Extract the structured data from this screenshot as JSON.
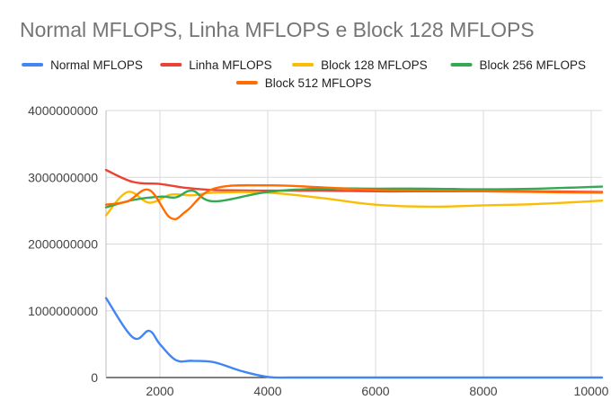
{
  "chart_data": {
    "type": "line",
    "title": "Normal MFLOPS, Linha MFLOPS e Block 128 MFLOPS",
    "xlabel": "",
    "ylabel": "",
    "xlim": [
      1000,
      10200
    ],
    "ylim": [
      0,
      4000000000
    ],
    "x_ticks": [
      2000,
      4000,
      6000,
      8000,
      10000
    ],
    "x_tick_labels": [
      "2000",
      "4000",
      "6000",
      "8000",
      "10000"
    ],
    "y_ticks": [
      0,
      1000000000,
      2000000000,
      3000000000,
      4000000000
    ],
    "y_tick_labels": [
      "0",
      "1000000000",
      "2000000000",
      "3000000000",
      "4000000000"
    ],
    "grid": true,
    "legend_position": "top",
    "series": [
      {
        "name": "Normal MFLOPS",
        "color": "#4285f4",
        "x": [
          1000,
          1500,
          1800,
          2000,
          2300,
          2600,
          3000,
          3500,
          4000,
          4500,
          6000,
          8000,
          10200
        ],
        "y": [
          1190000000,
          600000000,
          700000000,
          500000000,
          260000000,
          250000000,
          230000000,
          100000000,
          10000000,
          0,
          0,
          0,
          0
        ]
      },
      {
        "name": "Linha MFLOPS",
        "color": "#ea4335",
        "x": [
          1000,
          1500,
          2000,
          2500,
          3000,
          4000,
          5000,
          6000,
          7000,
          8000,
          9000,
          10200
        ],
        "y": [
          3110000000,
          2930000000,
          2900000000,
          2840000000,
          2810000000,
          2800000000,
          2800000000,
          2790000000,
          2790000000,
          2790000000,
          2790000000,
          2780000000
        ]
      },
      {
        "name": "Block 128 MFLOPS",
        "color": "#fbbc04",
        "x": [
          1000,
          1400,
          1800,
          2200,
          2600,
          3000,
          4000,
          5000,
          6000,
          7000,
          8000,
          9000,
          10200
        ],
        "y": [
          2430000000,
          2780000000,
          2620000000,
          2740000000,
          2730000000,
          2770000000,
          2770000000,
          2690000000,
          2590000000,
          2560000000,
          2580000000,
          2600000000,
          2650000000
        ]
      },
      {
        "name": "Block 256 MFLOPS",
        "color": "#34a853",
        "x": [
          1000,
          1500,
          2000,
          2300,
          2600,
          3000,
          4000,
          5000,
          6000,
          7000,
          8000,
          9000,
          10200
        ],
        "y": [
          2550000000,
          2660000000,
          2710000000,
          2700000000,
          2800000000,
          2640000000,
          2780000000,
          2830000000,
          2830000000,
          2830000000,
          2820000000,
          2830000000,
          2860000000
        ]
      },
      {
        "name": "Block 512 MFLOPS",
        "color": "#ff6d01",
        "x": [
          1000,
          1400,
          1800,
          2200,
          2500,
          3000,
          4000,
          5000,
          6000,
          7000,
          8000,
          9000,
          10200
        ],
        "y": [
          2590000000,
          2640000000,
          2810000000,
          2390000000,
          2500000000,
          2830000000,
          2880000000,
          2850000000,
          2810000000,
          2800000000,
          2790000000,
          2780000000,
          2770000000
        ]
      }
    ]
  }
}
